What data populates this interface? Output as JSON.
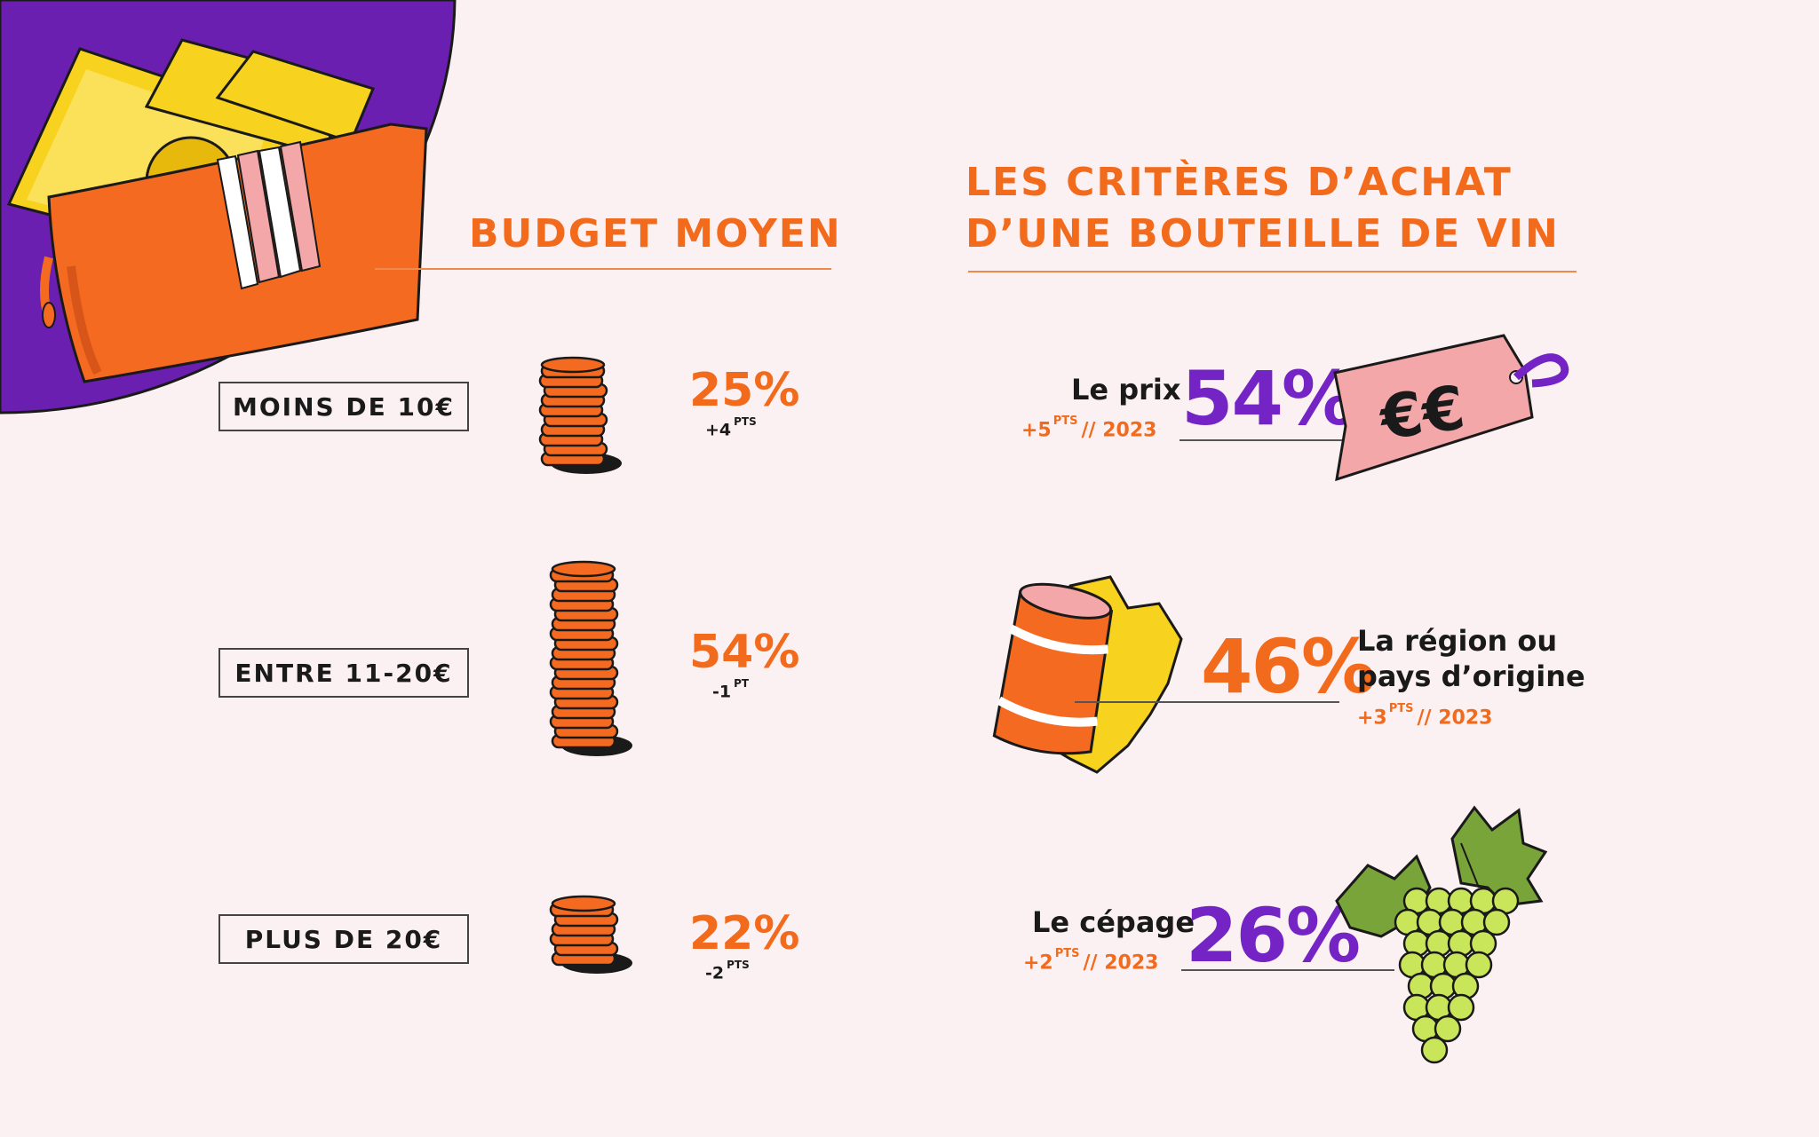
{
  "budget": {
    "title": "BUDGET MOYEN",
    "rows": [
      {
        "label": "MOINS DE 10€",
        "percent": "25%",
        "delta": "+4",
        "delta_unit": "PTS",
        "value": 25
      },
      {
        "label": "ENTRE 11-20€",
        "percent": "54%",
        "delta": "-1",
        "delta_unit": "PT",
        "value": 54
      },
      {
        "label": "PLUS DE 20€",
        "percent": "22%",
        "delta": "-2",
        "delta_unit": "PTS",
        "value": 22
      }
    ]
  },
  "criteria": {
    "title_line1": "LES CRITÈRES D’ACHAT",
    "title_line2": "D’UNE BOUTEILLE DE VIN",
    "items": [
      {
        "label": "Le prix",
        "percent": "54%",
        "delta": "+5",
        "delta_unit": "PTS",
        "delta_year": "// 2023",
        "icon": "price-tag-icon",
        "tag_text": "€€"
      },
      {
        "label_line1": "La région ou",
        "label_line2": "pays d’origine",
        "percent": "46%",
        "delta": "+3",
        "delta_unit": "PTS",
        "delta_year": "// 2023",
        "icon": "barrel-map-icon"
      },
      {
        "label": "Le cépage",
        "percent": "26%",
        "delta": "+2",
        "delta_unit": "PTS",
        "delta_year": "// 2023",
        "icon": "grapes-icon"
      }
    ]
  },
  "colors": {
    "background": "#fcf1f2",
    "orange": "#f26a1b",
    "purple": "#7424c4",
    "pink": "#f4a7a9",
    "yellow": "#f7d21e",
    "green": "#c9e65a"
  },
  "icons": [
    "wallet-icon",
    "coin-stack-icon",
    "price-tag-icon",
    "barrel-map-icon",
    "grapes-icon"
  ]
}
